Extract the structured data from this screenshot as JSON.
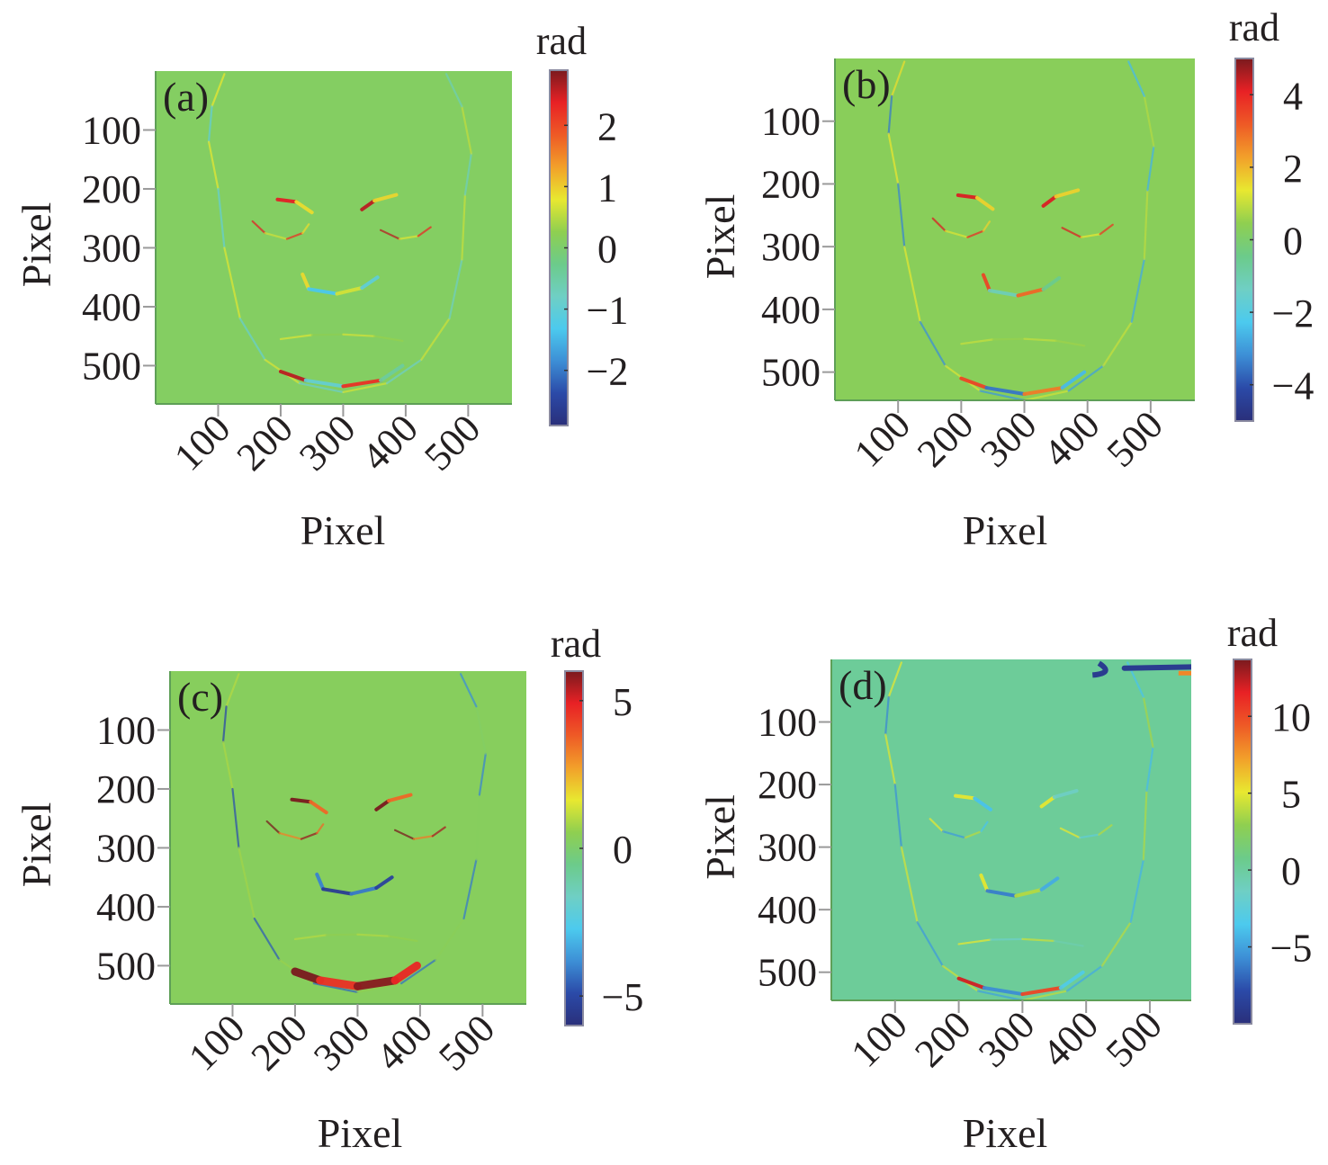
{
  "figure": {
    "description": "Four phase-difference maps of a face (panels a-d) with jet colorbars in radians",
    "colormap": "jet",
    "colormap_stops": [
      "#2a2f7a",
      "#2b4aa8",
      "#3d8fd6",
      "#4ccaee",
      "#6fcfc4",
      "#6ccb8a",
      "#8fcf50",
      "#e8e830",
      "#f2a02a",
      "#ee5a26",
      "#e82125",
      "#7a1a1e"
    ]
  },
  "chart_data": [
    {
      "type": "heatmap",
      "panel_label": "(a)",
      "title": "",
      "xlabel": "Pixel",
      "ylabel": "Pixel",
      "xlim": [
        0,
        570
      ],
      "ylim": [
        565,
        0
      ],
      "xticks": [
        100,
        200,
        300,
        400,
        500
      ],
      "yticks": [
        100,
        200,
        300,
        400,
        500
      ],
      "xtick_labels": [
        "100",
        "200",
        "300",
        "400",
        "500"
      ],
      "ytick_labels": [
        "100",
        "200",
        "300",
        "400",
        "500"
      ],
      "grid": false,
      "colorbar": {
        "label": "rad",
        "range": [
          -2.9,
          2.9
        ],
        "ticks": [
          2,
          1,
          0,
          -1,
          -2
        ],
        "tick_labels": [
          "2",
          "1",
          "0",
          "−1",
          "−2"
        ]
      },
      "background_value": 0.1,
      "features": [
        {
          "name": "face-outline",
          "value_range": [
            -1,
            0.8
          ]
        },
        {
          "name": "left-eyebrow",
          "value_range": [
            0.5,
            2.4
          ]
        },
        {
          "name": "right-eyebrow",
          "value_range": [
            0.5,
            2.6
          ]
        },
        {
          "name": "nose",
          "value_range": [
            -1.5,
            0.9
          ]
        },
        {
          "name": "mouth",
          "value_range": [
            0.2,
            0.7
          ]
        },
        {
          "name": "chin",
          "value_range": [
            -1.2,
            2.6
          ]
        }
      ]
    },
    {
      "type": "heatmap",
      "panel_label": "(b)",
      "title": "",
      "xlabel": "Pixel",
      "ylabel": "Pixel",
      "xlim": [
        0,
        570
      ],
      "ylim": [
        545,
        0
      ],
      "xticks": [
        100,
        200,
        300,
        400,
        500
      ],
      "yticks": [
        100,
        200,
        300,
        400,
        500
      ],
      "xtick_labels": [
        "100",
        "200",
        "300",
        "400",
        "500"
      ],
      "ytick_labels": [
        "100",
        "200",
        "300",
        "400",
        "500"
      ],
      "grid": false,
      "colorbar": {
        "label": "rad",
        "range": [
          -5,
          5
        ],
        "ticks": [
          4,
          2,
          0,
          -2,
          -4
        ],
        "tick_labels": [
          "4",
          "2",
          "0",
          "−2",
          "−4"
        ]
      },
      "background_value": 0.3,
      "features": [
        {
          "name": "face-outline",
          "value_range": [
            -3.5,
            1.5
          ]
        },
        {
          "name": "left-eyebrow",
          "value_range": [
            1,
            4.2
          ]
        },
        {
          "name": "right-eyebrow",
          "value_range": [
            1,
            4.2
          ]
        },
        {
          "name": "nose",
          "value_range": [
            -1.5,
            3.5
          ]
        },
        {
          "name": "mouth",
          "value_range": [
            0.5,
            1
          ]
        },
        {
          "name": "chin",
          "value_range": [
            -4,
            3.5
          ]
        }
      ]
    },
    {
      "type": "heatmap",
      "panel_label": "(c)",
      "title": "",
      "xlabel": "Pixel",
      "ylabel": "Pixel",
      "xlim": [
        0,
        570
      ],
      "ylim": [
        565,
        0
      ],
      "xticks": [
        100,
        200,
        300,
        400,
        500
      ],
      "yticks": [
        100,
        200,
        300,
        400,
        500
      ],
      "xtick_labels": [
        "100",
        "200",
        "300",
        "400",
        "500"
      ],
      "ytick_labels": [
        "100",
        "200",
        "300",
        "400",
        "500"
      ],
      "grid": false,
      "colorbar": {
        "label": "rad",
        "range": [
          -6,
          6
        ],
        "ticks": [
          5,
          0,
          -5
        ],
        "tick_labels": [
          "5",
          "0",
          "−5"
        ]
      },
      "background_value": 0.3,
      "features": [
        {
          "name": "face-outline",
          "value_range": [
            -5,
            1
          ]
        },
        {
          "name": "left-eyebrow",
          "value_range": [
            3,
            6
          ]
        },
        {
          "name": "right-eyebrow",
          "value_range": [
            3,
            6
          ]
        },
        {
          "name": "nose",
          "value_range": [
            -5.5,
            -4
          ]
        },
        {
          "name": "mouth",
          "value_range": [
            0.5,
            1
          ]
        },
        {
          "name": "chin",
          "value_range": [
            4.5,
            6
          ]
        }
      ]
    },
    {
      "type": "heatmap",
      "panel_label": "(d)",
      "title": "",
      "xlabel": "Pixel",
      "ylabel": "Pixel",
      "xlim": [
        0,
        565
      ],
      "ylim": [
        545,
        0
      ],
      "xticks": [
        100,
        200,
        300,
        400,
        500
      ],
      "yticks": [
        100,
        200,
        300,
        400,
        500
      ],
      "xtick_labels": [
        "100",
        "200",
        "300",
        "400",
        "500"
      ],
      "ytick_labels": [
        "100",
        "200",
        "300",
        "400",
        "500"
      ],
      "grid": false,
      "colorbar": {
        "label": "rad",
        "range": [
          -10,
          13.7
        ],
        "ticks": [
          10,
          5,
          0,
          -5
        ],
        "tick_labels": [
          "10",
          "5",
          "0",
          "−5"
        ]
      },
      "background_value": 0.2,
      "features": [
        {
          "name": "face-outline",
          "value_range": [
            -6,
            5
          ]
        },
        {
          "name": "left-eyebrow",
          "value_range": [
            -6,
            5
          ]
        },
        {
          "name": "right-eyebrow",
          "value_range": [
            -3,
            5
          ]
        },
        {
          "name": "nose",
          "value_range": [
            -7,
            5
          ]
        },
        {
          "name": "mouth",
          "value_range": [
            -2,
            5
          ]
        },
        {
          "name": "chin",
          "value_range": [
            -7,
            12
          ]
        },
        {
          "name": "top-right-artifact",
          "value_range": [
            -9,
            8
          ]
        }
      ]
    }
  ]
}
